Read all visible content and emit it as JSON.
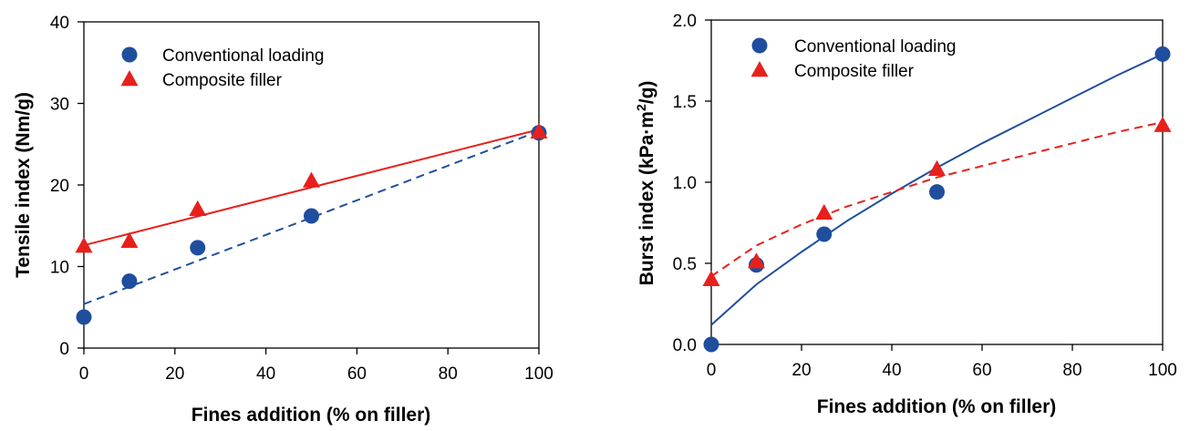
{
  "colors": {
    "conventional": "#1f4e9e",
    "composite": "#e8201c",
    "axis": "#000000"
  },
  "chart_data": [
    {
      "type": "scatter",
      "xlabel": "Fines addition (% on filler)",
      "ylabel": "Tensile index (Nm/g)",
      "xlim": [
        0,
        100
      ],
      "ylim": [
        0,
        40
      ],
      "x_ticks": [
        0,
        20,
        40,
        60,
        80,
        100
      ],
      "y_ticks": [
        0,
        10,
        20,
        30,
        40
      ],
      "legend_position": "top-left",
      "series": [
        {
          "name": "Conventional loading",
          "marker": "circle",
          "color": "#1f4e9e",
          "x": [
            0,
            10,
            25,
            50,
            100
          ],
          "y": [
            3.8,
            8.2,
            12.3,
            16.2,
            26.4
          ],
          "fit": {
            "kind": "linear",
            "style": "dashed",
            "x": [
              0,
              100
            ],
            "y": [
              5.4,
              26.6
            ]
          }
        },
        {
          "name": "Composite filler",
          "marker": "triangle",
          "color": "#e8201c",
          "x": [
            0,
            10,
            25,
            50,
            100
          ],
          "y": [
            12.5,
            13.1,
            17.0,
            20.5,
            26.5
          ],
          "fit": {
            "kind": "linear",
            "style": "solid",
            "x": [
              0,
              100
            ],
            "y": [
              12.6,
              26.8
            ]
          }
        }
      ]
    },
    {
      "type": "scatter",
      "xlabel": "Fines addition (% on filler)",
      "ylabel_prefix": "Burst index (kPa·m",
      "ylabel_sup": "2",
      "ylabel_suffix": "/g)",
      "xlim": [
        0,
        100
      ],
      "ylim": [
        0,
        2.0
      ],
      "x_ticks": [
        0,
        20,
        40,
        60,
        80,
        100
      ],
      "y_ticks": [
        "0.0",
        "0.5",
        "1.0",
        "1.5",
        "2.0"
      ],
      "legend_position": "top-left",
      "series": [
        {
          "name": "Conventional loading",
          "marker": "circle",
          "color": "#1f4e9e",
          "x": [
            0,
            10,
            25,
            50,
            100
          ],
          "y": [
            0.0,
            0.49,
            0.68,
            0.94,
            1.79
          ],
          "fit": {
            "kind": "curve",
            "style": "solid",
            "x": [
              0,
              10,
              20,
              30,
              40,
              50,
              60,
              70,
              80,
              90,
              100
            ],
            "y": [
              0.12,
              0.37,
              0.57,
              0.76,
              0.93,
              1.09,
              1.24,
              1.38,
              1.52,
              1.66,
              1.79
            ]
          }
        },
        {
          "name": "Composite filler",
          "marker": "triangle",
          "color": "#e8201c",
          "x": [
            0,
            10,
            25,
            50,
            100
          ],
          "y": [
            0.4,
            0.51,
            0.81,
            1.08,
            1.35
          ],
          "fit": {
            "kind": "curve",
            "style": "dashed",
            "x": [
              0,
              10,
              20,
              30,
              40,
              50,
              60,
              70,
              80,
              90,
              100
            ],
            "y": [
              0.42,
              0.61,
              0.74,
              0.85,
              0.94,
              1.03,
              1.1,
              1.17,
              1.24,
              1.31,
              1.37
            ]
          }
        }
      ]
    }
  ]
}
